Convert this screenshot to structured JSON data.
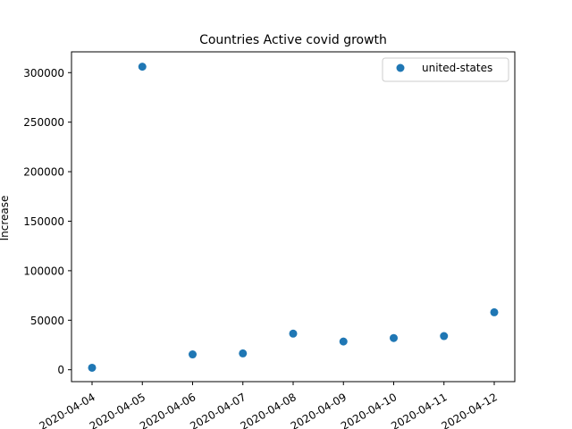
{
  "chart_data": {
    "type": "scatter",
    "title": "Countries Active covid growth",
    "xlabel": "",
    "ylabel": "Increase",
    "x": [
      "2020-04-04",
      "2020-04-05",
      "2020-04-06",
      "2020-04-07",
      "2020-04-08",
      "2020-04-09",
      "2020-04-10",
      "2020-04-11",
      "2020-04-12"
    ],
    "series": [
      {
        "name": "united-states",
        "color": "#1f77b4",
        "values": [
          2000,
          306000,
          15500,
          16500,
          36500,
          28500,
          32000,
          34000,
          58000
        ]
      }
    ],
    "ylim": [
      -12000,
      321000
    ],
    "yticks": [
      0,
      50000,
      100000,
      150000,
      200000,
      250000,
      300000
    ],
    "ytick_labels": [
      "0",
      "50000",
      "100000",
      "150000",
      "200000",
      "250000",
      "300000"
    ],
    "xtick_labels": [
      "2020-04-04",
      "2020-04-05",
      "2020-04-06",
      "2020-04-07",
      "2020-04-08",
      "2020-04-09",
      "2020-04-10",
      "2020-04-11",
      "2020-04-12"
    ],
    "xtick_rotation": 30,
    "legend": "top-right",
    "grid": false
  }
}
